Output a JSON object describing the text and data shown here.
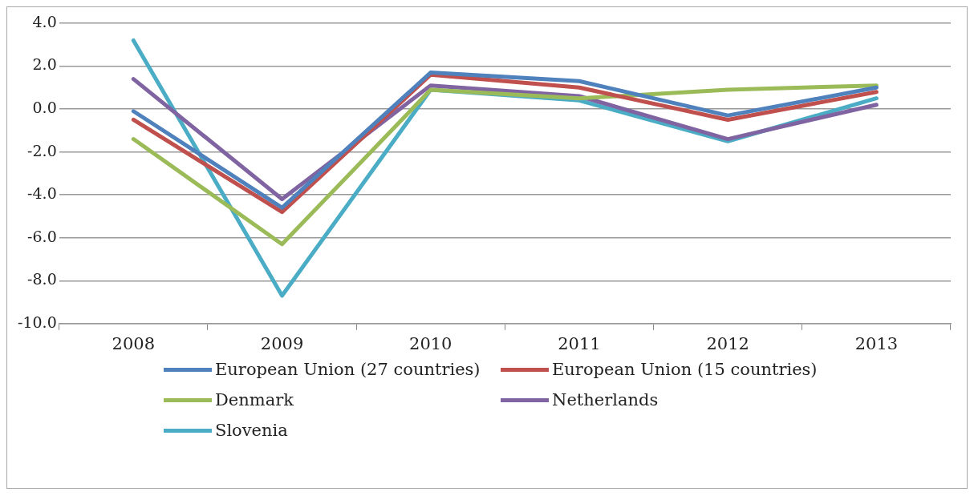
{
  "chart_data": {
    "type": "line",
    "categories": [
      "2008",
      "2009",
      "2010",
      "2011",
      "2012",
      "2013"
    ],
    "series": [
      {
        "name": "European Union (27 countries)",
        "color": "#4f81bd",
        "values": [
          -0.1,
          -4.6,
          1.7,
          1.3,
          -0.3,
          1.0
        ]
      },
      {
        "name": "European Union (15 countries)",
        "color": "#c0504d",
        "values": [
          -0.5,
          -4.8,
          1.6,
          1.0,
          -0.5,
          0.8
        ]
      },
      {
        "name": "Denmark",
        "color": "#9bbb59",
        "values": [
          -1.4,
          -6.3,
          0.9,
          0.5,
          0.9,
          1.1
        ]
      },
      {
        "name": "Netherlands",
        "color": "#8064a2",
        "values": [
          1.4,
          -4.2,
          1.1,
          0.6,
          -1.4,
          0.2
        ]
      },
      {
        "name": "Slovenia",
        "color": "#4bacc6",
        "values": [
          3.2,
          -8.7,
          0.9,
          0.4,
          -1.5,
          0.5
        ]
      }
    ],
    "ylim": [
      -10,
      4
    ],
    "yticks": [
      {
        "value": -10,
        "label": "-10.0"
      },
      {
        "value": -8,
        "label": "-8.0"
      },
      {
        "value": -6,
        "label": "-6.0"
      },
      {
        "value": -4,
        "label": "-4.0"
      },
      {
        "value": -2,
        "label": "-2.0"
      },
      {
        "value": 0,
        "label": "0.0"
      },
      {
        "value": 2,
        "label": "2.0"
      },
      {
        "value": 4,
        "label": "4.0"
      }
    ],
    "grid": "y",
    "legend": "bottom",
    "marker": "none",
    "line_style": "solid"
  }
}
